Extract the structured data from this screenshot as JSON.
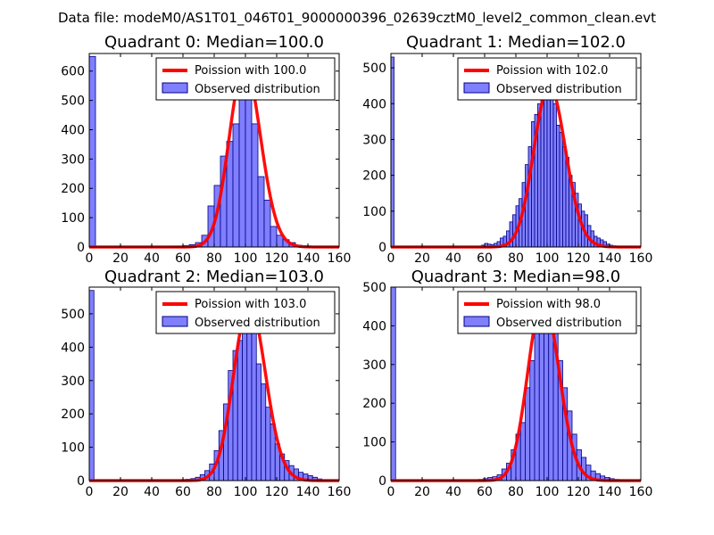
{
  "suptitle": "Data file: modeM0/AS1T01_046T01_9000000396_02639cztM0_level2_common_clean.evt",
  "colors": {
    "poisson": "#ff0000",
    "bars": "#7f7fff",
    "bar_edge": "#000080"
  },
  "chart_data": [
    {
      "type": "bar",
      "title": "Quadrant 0: Median=100.0",
      "xlim": [
        0,
        160
      ],
      "ylim": [
        0,
        660
      ],
      "xticks": [
        0,
        20,
        40,
        60,
        80,
        100,
        120,
        140,
        160
      ],
      "yticks": [
        0,
        100,
        200,
        300,
        400,
        500,
        600
      ],
      "bin_width": 4,
      "x": [
        0,
        52,
        56,
        60,
        64,
        68,
        72,
        76,
        80,
        84,
        88,
        92,
        96,
        100,
        104,
        108,
        112,
        116,
        120,
        124,
        128,
        132,
        136,
        140
      ],
      "values": [
        650,
        2,
        3,
        5,
        8,
        15,
        40,
        140,
        210,
        310,
        360,
        420,
        590,
        620,
        420,
        240,
        160,
        70,
        40,
        25,
        15,
        6,
        3,
        1
      ],
      "poisson_mu": 100.0,
      "legend": [
        "Poission with 100.0",
        "Observed distribution"
      ]
    },
    {
      "type": "bar",
      "title": "Quadrant 1: Median=102.0",
      "xlim": [
        0,
        160
      ],
      "ylim": [
        0,
        540
      ],
      "xticks": [
        0,
        20,
        40,
        60,
        80,
        100,
        120,
        140,
        160
      ],
      "yticks": [
        0,
        100,
        200,
        300,
        400,
        500
      ],
      "bin_width": 2,
      "x": [
        0,
        58,
        60,
        62,
        64,
        66,
        68,
        70,
        72,
        74,
        76,
        78,
        80,
        82,
        84,
        86,
        88,
        90,
        92,
        94,
        96,
        98,
        100,
        102,
        104,
        106,
        108,
        110,
        112,
        114,
        116,
        118,
        120,
        122,
        124,
        126,
        128,
        130,
        132,
        134,
        136,
        138,
        140,
        142,
        144,
        146,
        148,
        150
      ],
      "values": [
        530,
        5,
        10,
        8,
        6,
        10,
        15,
        25,
        30,
        45,
        70,
        90,
        115,
        135,
        180,
        230,
        280,
        350,
        370,
        400,
        420,
        430,
        450,
        420,
        400,
        340,
        320,
        280,
        250,
        200,
        180,
        150,
        120,
        100,
        90,
        60,
        45,
        30,
        25,
        20,
        15,
        8,
        5,
        3,
        2,
        1,
        1,
        1
      ],
      "poisson_mu": 102.0,
      "legend": [
        "Poission with 102.0",
        "Observed distribution"
      ]
    },
    {
      "type": "bar",
      "title": "Quadrant 2: Median=103.0",
      "xlim": [
        0,
        160
      ],
      "ylim": [
        0,
        580
      ],
      "xticks": [
        0,
        20,
        40,
        60,
        80,
        100,
        120,
        140,
        160
      ],
      "yticks": [
        0,
        100,
        200,
        300,
        400,
        500
      ],
      "bin_width": 3,
      "x": [
        0,
        59,
        62,
        65,
        68,
        71,
        74,
        77,
        80,
        83,
        86,
        89,
        92,
        95,
        98,
        101,
        104,
        107,
        110,
        113,
        116,
        119,
        122,
        125,
        128,
        131,
        134,
        137,
        140,
        143,
        146,
        149,
        152
      ],
      "values": [
        570,
        3,
        4,
        6,
        10,
        18,
        30,
        50,
        90,
        150,
        230,
        330,
        390,
        420,
        480,
        510,
        530,
        350,
        290,
        220,
        170,
        110,
        80,
        60,
        45,
        35,
        25,
        20,
        15,
        10,
        5,
        2,
        1
      ],
      "poisson_mu": 103.0,
      "legend": [
        "Poission with 103.0",
        "Observed distribution"
      ]
    },
    {
      "type": "bar",
      "title": "Quadrant 3: Median=98.0",
      "xlim": [
        0,
        160
      ],
      "ylim": [
        0,
        500
      ],
      "xticks": [
        0,
        20,
        40,
        60,
        80,
        100,
        120,
        140,
        160
      ],
      "yticks": [
        0,
        100,
        200,
        300,
        400,
        500
      ],
      "bin_width": 3,
      "x": [
        0,
        56,
        59,
        62,
        65,
        68,
        71,
        74,
        77,
        80,
        83,
        86,
        89,
        92,
        95,
        98,
        101,
        104,
        107,
        110,
        113,
        116,
        119,
        122,
        125,
        128,
        131,
        134,
        137,
        140,
        143,
        146,
        149
      ],
      "values": [
        500,
        3,
        5,
        8,
        10,
        15,
        30,
        45,
        80,
        120,
        150,
        240,
        310,
        380,
        420,
        470,
        460,
        400,
        310,
        240,
        180,
        120,
        80,
        60,
        40,
        25,
        18,
        12,
        8,
        5,
        3,
        2,
        1
      ],
      "poisson_mu": 98.0,
      "legend": [
        "Poission with 98.0",
        "Observed distribution"
      ]
    }
  ]
}
